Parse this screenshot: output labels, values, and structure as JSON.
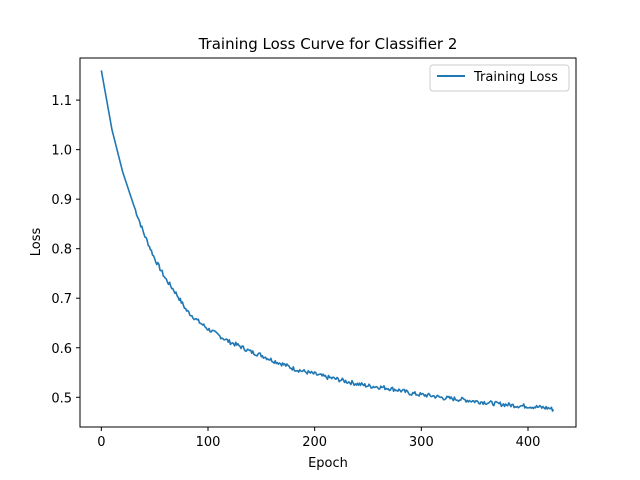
{
  "chart_data": {
    "type": "line",
    "title": "Training Loss Curve for Classifier 2",
    "xlabel": "Epoch",
    "ylabel": "Loss",
    "xlim": [
      -20,
      445
    ],
    "ylim": [
      0.44,
      1.185
    ],
    "xticks": [
      0,
      100,
      200,
      300,
      400
    ],
    "yticks": [
      0.5,
      0.6,
      0.7,
      0.8,
      0.9,
      1.0,
      1.1
    ],
    "ytick_labels": [
      "0.5",
      "0.6",
      "0.7",
      "0.8",
      "0.9",
      "1.0",
      "1.1"
    ],
    "grid": false,
    "legend": {
      "placement": "top-right"
    },
    "series": [
      {
        "name": "Training Loss",
        "color": "#1f77b4",
        "x": [
          0,
          10,
          20,
          30,
          40,
          50,
          60,
          70,
          80,
          90,
          100,
          110,
          120,
          130,
          140,
          150,
          160,
          170,
          180,
          190,
          200,
          210,
          220,
          230,
          240,
          250,
          260,
          270,
          280,
          290,
          300,
          310,
          320,
          330,
          340,
          350,
          360,
          370,
          380,
          390,
          400,
          410,
          420,
          424
        ],
        "y": [
          1.16,
          1.04,
          0.955,
          0.89,
          0.83,
          0.78,
          0.74,
          0.71,
          0.675,
          0.655,
          0.638,
          0.625,
          0.612,
          0.603,
          0.592,
          0.585,
          0.575,
          0.567,
          0.558,
          0.552,
          0.547,
          0.541,
          0.537,
          0.532,
          0.527,
          0.523,
          0.521,
          0.518,
          0.514,
          0.508,
          0.505,
          0.503,
          0.499,
          0.497,
          0.495,
          0.492,
          0.49,
          0.487,
          0.485,
          0.483,
          0.482,
          0.48,
          0.478,
          0.475
        ]
      }
    ]
  }
}
